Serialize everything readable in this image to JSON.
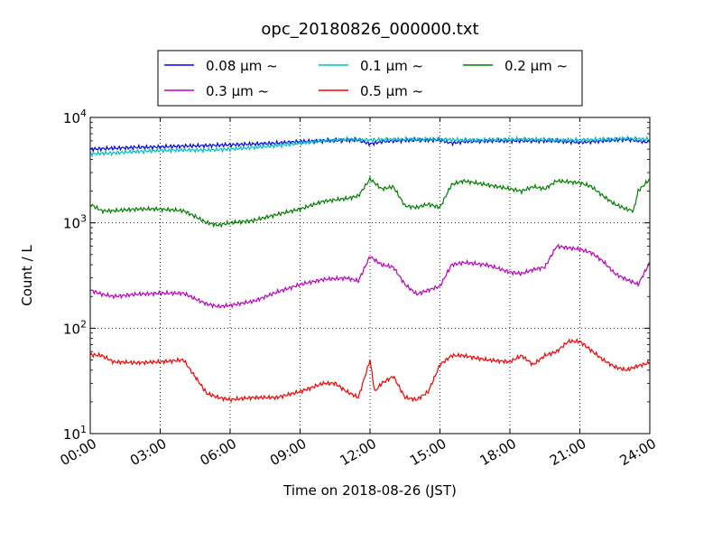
{
  "chart_data": {
    "type": "line",
    "title": "opc_20180826_000000.txt",
    "xlabel": "Time on 2018-08-26 (JST)",
    "ylabel": "Count / L",
    "x_ticks": [
      "00:00",
      "03:00",
      "06:00",
      "09:00",
      "12:00",
      "15:00",
      "18:00",
      "21:00",
      "24:00"
    ],
    "y_ticks": [
      {
        "base": "10",
        "exp": "1",
        "value": 10
      },
      {
        "base": "10",
        "exp": "2",
        "value": 100
      },
      {
        "base": "10",
        "exp": "3",
        "value": 1000
      },
      {
        "base": "10",
        "exp": "4",
        "value": 10000
      }
    ],
    "xlim": [
      0,
      24
    ],
    "ylim": [
      10,
      10000
    ],
    "yscale": "log",
    "grid": true,
    "legend_position": "top-center",
    "series": [
      {
        "name": "0.08 μm ~",
        "color": "#0000ff",
        "x": [
          0.0,
          1.0,
          2.0,
          3.0,
          4.0,
          5.0,
          6.0,
          7.0,
          8.0,
          9.0,
          10.0,
          11.0,
          11.5,
          12.0,
          12.5,
          13.0,
          14.0,
          15.0,
          15.5,
          16.0,
          17.0,
          18.0,
          19.0,
          20.0,
          21.0,
          22.0,
          23.0,
          24.0
        ],
        "y": [
          5000,
          5100,
          5200,
          5250,
          5350,
          5400,
          5500,
          5600,
          5700,
          5900,
          6000,
          6100,
          6100,
          5600,
          5900,
          6000,
          6100,
          6100,
          5700,
          5900,
          6000,
          6000,
          6000,
          6000,
          5800,
          6000,
          6200,
          5800
        ]
      },
      {
        "name": "0.1 μm ~",
        "color": "#00bfbf",
        "x": [
          0.0,
          1.0,
          2.0,
          3.0,
          4.0,
          5.0,
          6.0,
          7.0,
          8.0,
          9.0,
          10.0,
          11.0,
          12.0,
          13.0,
          14.0,
          15.0,
          16.0,
          17.0,
          18.0,
          19.0,
          20.0,
          21.0,
          22.0,
          23.0,
          24.0
        ],
        "y": [
          4500,
          4600,
          4750,
          4850,
          4900,
          4900,
          5000,
          5200,
          5400,
          5700,
          6000,
          6200,
          6100,
          6200,
          6200,
          6200,
          6100,
          6100,
          6200,
          6200,
          6100,
          6100,
          6200,
          6300,
          6200
        ]
      },
      {
        "name": "0.2 μm ~",
        "color": "#008000",
        "x": [
          0.0,
          0.5,
          1.0,
          2.0,
          3.0,
          4.0,
          4.5,
          5.0,
          5.5,
          6.0,
          7.0,
          8.0,
          9.0,
          10.0,
          11.0,
          11.5,
          12.0,
          12.5,
          13.0,
          13.5,
          14.0,
          14.5,
          15.0,
          15.5,
          16.0,
          17.0,
          18.0,
          18.5,
          19.0,
          19.5,
          20.0,
          21.0,
          21.5,
          22.0,
          22.5,
          23.0,
          23.3,
          23.5,
          24.0
        ],
        "y": [
          1500,
          1300,
          1300,
          1350,
          1350,
          1300,
          1150,
          1000,
          950,
          1000,
          1050,
          1200,
          1350,
          1600,
          1700,
          1800,
          2600,
          2100,
          2200,
          1450,
          1400,
          1500,
          1400,
          2300,
          2500,
          2300,
          2100,
          2000,
          2200,
          2100,
          2500,
          2400,
          2200,
          1800,
          1500,
          1350,
          1300,
          2000,
          2600
        ]
      },
      {
        "name": "0.3 μm ~",
        "color": "#bf00bf",
        "x": [
          0.0,
          0.5,
          1.0,
          2.0,
          3.0,
          4.0,
          4.5,
          5.0,
          5.5,
          6.0,
          7.0,
          8.0,
          9.0,
          10.0,
          11.0,
          11.5,
          12.0,
          12.5,
          13.0,
          13.5,
          14.0,
          14.5,
          15.0,
          15.5,
          16.0,
          17.0,
          18.0,
          18.5,
          19.0,
          19.5,
          20.0,
          21.0,
          21.5,
          22.0,
          22.5,
          23.0,
          23.5,
          24.0
        ],
        "y": [
          230,
          210,
          200,
          210,
          215,
          215,
          190,
          170,
          160,
          165,
          180,
          220,
          260,
          290,
          300,
          280,
          480,
          400,
          380,
          260,
          210,
          230,
          250,
          400,
          420,
          400,
          340,
          330,
          360,
          380,
          600,
          560,
          520,
          430,
          330,
          290,
          260,
          420
        ]
      },
      {
        "name": "0.5 μm ~",
        "color": "#ff0000",
        "x": [
          0.0,
          0.5,
          1.0,
          2.0,
          3.0,
          4.0,
          4.3,
          4.7,
          5.0,
          5.5,
          6.0,
          7.0,
          8.0,
          9.0,
          10.0,
          10.5,
          11.0,
          11.5,
          12.0,
          12.2,
          12.5,
          13.0,
          13.5,
          14.0,
          14.5,
          15.0,
          15.5,
          16.0,
          17.0,
          18.0,
          18.5,
          19.0,
          19.5,
          20.0,
          20.5,
          21.0,
          22.0,
          22.5,
          23.0,
          23.5,
          24.0
        ],
        "y": [
          56,
          55,
          48,
          47,
          48,
          50,
          40,
          30,
          24,
          22,
          21,
          22,
          22,
          25,
          30,
          30,
          25,
          22,
          50,
          25,
          30,
          35,
          22,
          21,
          25,
          45,
          55,
          55,
          50,
          48,
          55,
          45,
          55,
          60,
          75,
          75,
          50,
          43,
          40,
          44,
          47
        ]
      }
    ]
  }
}
